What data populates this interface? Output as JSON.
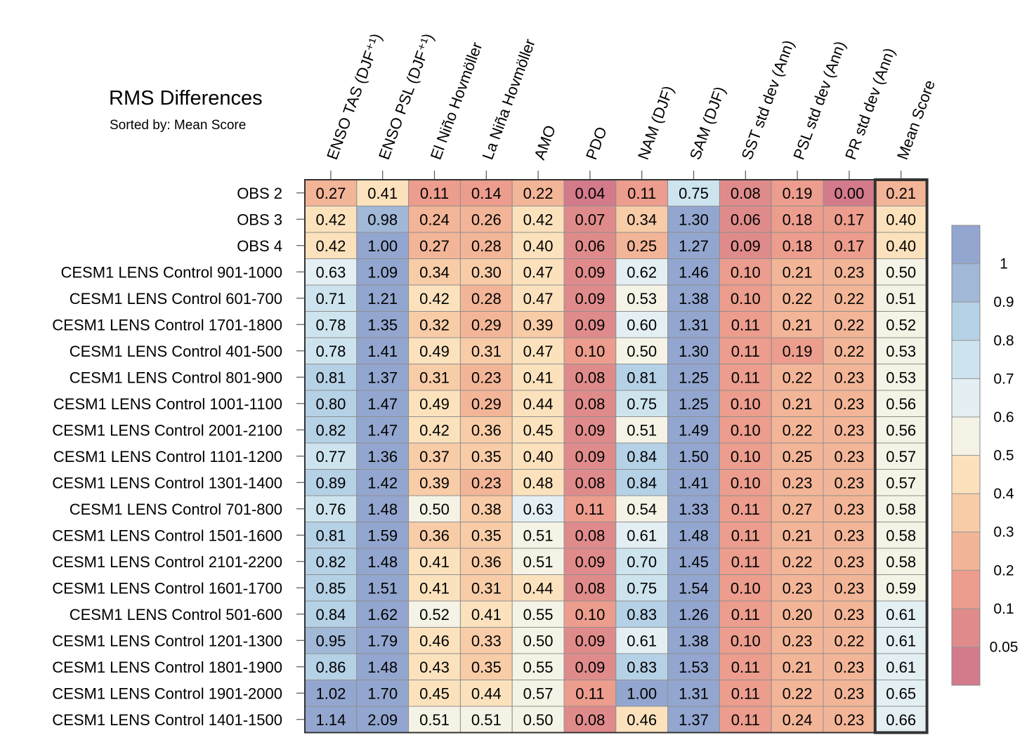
{
  "title": "RMS Differences",
  "subtitle": "Sorted by: Mean Score",
  "chart_data": {
    "type": "heatmap",
    "title": "RMS Differences",
    "subtitle": "Sorted by: Mean Score",
    "columns": [
      "ENSO TAS (DJF⁺¹)",
      "ENSO PSL (DJF⁺¹)",
      "El Niño Hovmöller",
      "La Niña Hovmöller",
      "AMO",
      "PDO",
      "NAM (DJF)",
      "SAM (DJF)",
      "SST std dev (Ann)",
      "PSL std dev (Ann)",
      "PR std dev (Ann)",
      "Mean Score"
    ],
    "rows": [
      "OBS 2",
      "OBS 3",
      "OBS 4",
      "CESM1 LENS Control 901-1000",
      "CESM1 LENS Control 601-700",
      "CESM1 LENS Control 1701-1800",
      "CESM1 LENS Control 401-500",
      "CESM1 LENS Control 801-900",
      "CESM1 LENS Control 1001-1100",
      "CESM1 LENS Control 2001-2100",
      "CESM1 LENS Control 1101-1200",
      "CESM1 LENS Control 1301-1400",
      "CESM1 LENS Control 701-800",
      "CESM1 LENS Control 1501-1600",
      "CESM1 LENS Control 2101-2200",
      "CESM1 LENS Control 1601-1700",
      "CESM1 LENS Control 501-600",
      "CESM1 LENS Control 1201-1300",
      "CESM1 LENS Control 1801-1900",
      "CESM1 LENS Control 1901-2000",
      "CESM1 LENS Control 1401-1500"
    ],
    "values": [
      [
        0.27,
        0.41,
        0.11,
        0.14,
        0.22,
        0.04,
        0.11,
        0.75,
        0.08,
        0.19,
        0.0,
        0.21
      ],
      [
        0.42,
        0.98,
        0.24,
        0.26,
        0.42,
        0.07,
        0.34,
        1.3,
        0.06,
        0.18,
        0.17,
        0.4
      ],
      [
        0.42,
        1.0,
        0.27,
        0.28,
        0.4,
        0.06,
        0.25,
        1.27,
        0.09,
        0.18,
        0.17,
        0.4
      ],
      [
        0.63,
        1.09,
        0.34,
        0.3,
        0.47,
        0.09,
        0.62,
        1.46,
        0.1,
        0.21,
        0.23,
        0.5
      ],
      [
        0.71,
        1.21,
        0.42,
        0.28,
        0.47,
        0.09,
        0.53,
        1.38,
        0.1,
        0.22,
        0.22,
        0.51
      ],
      [
        0.78,
        1.35,
        0.32,
        0.29,
        0.39,
        0.09,
        0.6,
        1.31,
        0.11,
        0.21,
        0.22,
        0.52
      ],
      [
        0.78,
        1.41,
        0.49,
        0.31,
        0.47,
        0.1,
        0.5,
        1.3,
        0.11,
        0.19,
        0.22,
        0.53
      ],
      [
        0.81,
        1.37,
        0.31,
        0.23,
        0.41,
        0.08,
        0.81,
        1.25,
        0.11,
        0.22,
        0.23,
        0.53
      ],
      [
        0.8,
        1.47,
        0.49,
        0.29,
        0.44,
        0.08,
        0.75,
        1.25,
        0.1,
        0.21,
        0.23,
        0.56
      ],
      [
        0.82,
        1.47,
        0.42,
        0.36,
        0.45,
        0.09,
        0.51,
        1.49,
        0.1,
        0.22,
        0.23,
        0.56
      ],
      [
        0.77,
        1.36,
        0.37,
        0.35,
        0.4,
        0.09,
        0.84,
        1.5,
        0.1,
        0.25,
        0.23,
        0.57
      ],
      [
        0.89,
        1.42,
        0.39,
        0.23,
        0.48,
        0.08,
        0.84,
        1.41,
        0.1,
        0.23,
        0.23,
        0.57
      ],
      [
        0.76,
        1.48,
        0.5,
        0.38,
        0.63,
        0.11,
        0.54,
        1.33,
        0.11,
        0.27,
        0.23,
        0.58
      ],
      [
        0.81,
        1.59,
        0.36,
        0.35,
        0.51,
        0.08,
        0.61,
        1.48,
        0.11,
        0.21,
        0.23,
        0.58
      ],
      [
        0.82,
        1.48,
        0.41,
        0.36,
        0.51,
        0.09,
        0.7,
        1.45,
        0.11,
        0.22,
        0.23,
        0.58
      ],
      [
        0.85,
        1.51,
        0.41,
        0.31,
        0.44,
        0.08,
        0.75,
        1.54,
        0.1,
        0.23,
        0.23,
        0.59
      ],
      [
        0.84,
        1.62,
        0.52,
        0.41,
        0.55,
        0.1,
        0.83,
        1.26,
        0.11,
        0.2,
        0.23,
        0.61
      ],
      [
        0.95,
        1.79,
        0.46,
        0.33,
        0.5,
        0.09,
        0.61,
        1.38,
        0.1,
        0.23,
        0.22,
        0.61
      ],
      [
        0.86,
        1.48,
        0.43,
        0.35,
        0.55,
        0.09,
        0.83,
        1.53,
        0.11,
        0.21,
        0.23,
        0.61
      ],
      [
        1.02,
        1.7,
        0.45,
        0.44,
        0.57,
        0.11,
        1.0,
        1.31,
        0.11,
        0.22,
        0.23,
        0.65
      ],
      [
        1.14,
        2.09,
        0.51,
        0.51,
        0.5,
        0.08,
        0.46,
        1.37,
        0.11,
        0.24,
        0.23,
        0.66
      ]
    ],
    "highlighted_column": "Mean Score",
    "colorbar": {
      "levels": [
        0.05,
        0.1,
        0.2,
        0.3,
        0.4,
        0.5,
        0.6,
        0.7,
        0.8,
        0.9,
        1
      ],
      "labels": [
        "0.05",
        "0.1",
        "0.2",
        "0.3",
        "0.4",
        "0.5",
        "0.6",
        "0.7",
        "0.8",
        "0.9",
        "1"
      ],
      "colors": [
        "#d37a8b",
        "#e08b8b",
        "#ec9d8d",
        "#f3b597",
        "#f8cca7",
        "#fbe2bd",
        "#f5f3e5",
        "#e4eff4",
        "#cde4ef",
        "#b5d1e6",
        "#a1b8d7",
        "#93a6cf"
      ],
      "placement": "right"
    }
  }
}
